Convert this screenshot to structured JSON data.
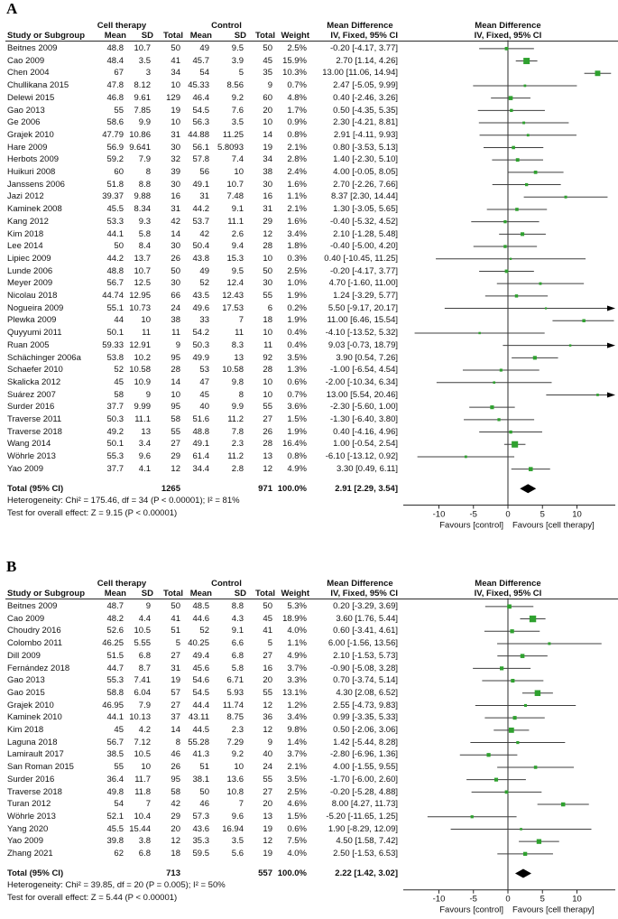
{
  "colors": {
    "marker": "#2FA12F",
    "ci_line": "#3F3F3F",
    "diamond": "#000000",
    "axis": "#2B2B2B",
    "text": "#111111"
  },
  "axis": {
    "ticks": [
      -10,
      -5,
      0,
      5,
      10
    ],
    "favours_left": "Favours [control]",
    "favours_right": "Favours [cell therapy]"
  },
  "headers": {
    "study": "Study or Subgroup",
    "group1": "Cell therapy",
    "group2": "Control",
    "effect": "Mean Difference",
    "method": "IV, Fixed, 95% CI",
    "cols": [
      "Mean",
      "SD",
      "Total",
      "Mean",
      "SD",
      "Total",
      "Weight"
    ]
  },
  "chart_data": [
    {
      "type": "forest",
      "label": "A",
      "studies": [
        {
          "s": "Beitnes 2009",
          "m1": "48.8",
          "sd1": "10.7",
          "n1": "50",
          "m2": "49",
          "sd2": "9.5",
          "n2": "50",
          "w": "2.5%",
          "md": -0.2,
          "lo": -4.17,
          "hi": 3.77
        },
        {
          "s": "Cao 2009",
          "m1": "48.4",
          "sd1": "3.5",
          "n1": "41",
          "m2": "45.7",
          "sd2": "3.9",
          "n2": "45",
          "w": "15.9%",
          "md": 2.7,
          "lo": 1.14,
          "hi": 4.26
        },
        {
          "s": "Chen 2004",
          "m1": "67",
          "sd1": "3",
          "n1": "34",
          "m2": "54",
          "sd2": "5",
          "n2": "35",
          "w": "10.3%",
          "md": 13,
          "lo": 11.06,
          "hi": 14.94
        },
        {
          "s": "Chullikana 2015",
          "m1": "47.8",
          "sd1": "8.12",
          "n1": "10",
          "m2": "45.33",
          "sd2": "8.56",
          "n2": "9",
          "w": "0.7%",
          "md": 2.47,
          "lo": -5.05,
          "hi": 9.99
        },
        {
          "s": "Delewi 2015",
          "m1": "46.8",
          "sd1": "9.61",
          "n1": "129",
          "m2": "46.4",
          "sd2": "9.2",
          "n2": "60",
          "w": "4.8%",
          "md": 0.4,
          "lo": -2.46,
          "hi": 3.26
        },
        {
          "s": "Gao 2013",
          "m1": "55",
          "sd1": "7.85",
          "n1": "19",
          "m2": "54.5",
          "sd2": "7.6",
          "n2": "20",
          "w": "1.7%",
          "md": 0.5,
          "lo": -4.35,
          "hi": 5.35
        },
        {
          "s": "Ge 2006",
          "m1": "58.6",
          "sd1": "9.9",
          "n1": "10",
          "m2": "56.3",
          "sd2": "3.5",
          "n2": "10",
          "w": "0.9%",
          "md": 2.3,
          "lo": -4.21,
          "hi": 8.81
        },
        {
          "s": "Grajek 2010",
          "m1": "47.79",
          "sd1": "10.86",
          "n1": "31",
          "m2": "44.88",
          "sd2": "11.25",
          "n2": "14",
          "w": "0.8%",
          "md": 2.91,
          "lo": -4.11,
          "hi": 9.93
        },
        {
          "s": "Hare 2009",
          "m1": "56.9",
          "sd1": "9.641",
          "n1": "30",
          "m2": "56.1",
          "sd2": "5.8093",
          "n2": "19",
          "w": "2.1%",
          "md": 0.8,
          "lo": -3.53,
          "hi": 5.13
        },
        {
          "s": "Herbots 2009",
          "m1": "59.2",
          "sd1": "7.9",
          "n1": "32",
          "m2": "57.8",
          "sd2": "7.4",
          "n2": "34",
          "w": "2.8%",
          "md": 1.4,
          "lo": -2.3,
          "hi": 5.1
        },
        {
          "s": "Huikuri 2008",
          "m1": "60",
          "sd1": "8",
          "n1": "39",
          "m2": "56",
          "sd2": "10",
          "n2": "38",
          "w": "2.4%",
          "md": 4,
          "lo": -0.05,
          "hi": 8.05
        },
        {
          "s": "Janssens 2006",
          "m1": "51.8",
          "sd1": "8.8",
          "n1": "30",
          "m2": "49.1",
          "sd2": "10.7",
          "n2": "30",
          "w": "1.6%",
          "md": 2.7,
          "lo": -2.26,
          "hi": 7.66
        },
        {
          "s": "Jazi 2012",
          "m1": "39.37",
          "sd1": "9.88",
          "n1": "16",
          "m2": "31",
          "sd2": "7.48",
          "n2": "16",
          "w": "1.1%",
          "md": 8.37,
          "lo": 2.3,
          "hi": 14.44
        },
        {
          "s": "Kaminek 2008",
          "m1": "45.5",
          "sd1": "8.34",
          "n1": "31",
          "m2": "44.2",
          "sd2": "9.1",
          "n2": "31",
          "w": "2.1%",
          "md": 1.3,
          "lo": -3.05,
          "hi": 5.65
        },
        {
          "s": "Kang 2012",
          "m1": "53.3",
          "sd1": "9.3",
          "n1": "42",
          "m2": "53.7",
          "sd2": "11.1",
          "n2": "29",
          "w": "1.6%",
          "md": -0.4,
          "lo": -5.32,
          "hi": 4.52
        },
        {
          "s": "Kim 2018",
          "m1": "44.1",
          "sd1": "5.8",
          "n1": "14",
          "m2": "42",
          "sd2": "2.6",
          "n2": "12",
          "w": "3.4%",
          "md": 2.1,
          "lo": -1.28,
          "hi": 5.48
        },
        {
          "s": "Lee 2014",
          "m1": "50",
          "sd1": "8.4",
          "n1": "30",
          "m2": "50.4",
          "sd2": "9.4",
          "n2": "28",
          "w": "1.8%",
          "md": -0.4,
          "lo": -5,
          "hi": 4.2
        },
        {
          "s": "Lipiec 2009",
          "m1": "44.2",
          "sd1": "13.7",
          "n1": "26",
          "m2": "43.8",
          "sd2": "15.3",
          "n2": "10",
          "w": "0.3%",
          "md": 0.4,
          "lo": -10.45,
          "hi": 11.25
        },
        {
          "s": "Lunde 2006",
          "m1": "48.8",
          "sd1": "10.7",
          "n1": "50",
          "m2": "49",
          "sd2": "9.5",
          "n2": "50",
          "w": "2.5%",
          "md": -0.2,
          "lo": -4.17,
          "hi": 3.77
        },
        {
          "s": "Meyer 2009",
          "m1": "56.7",
          "sd1": "12.5",
          "n1": "30",
          "m2": "52",
          "sd2": "12.4",
          "n2": "30",
          "w": "1.0%",
          "md": 4.7,
          "lo": -1.6,
          "hi": 11
        },
        {
          "s": "Nicolau 2018",
          "m1": "44.74",
          "sd1": "12.95",
          "n1": "66",
          "m2": "43.5",
          "sd2": "12.43",
          "n2": "55",
          "w": "1.9%",
          "md": 1.24,
          "lo": -3.29,
          "hi": 5.77
        },
        {
          "s": "Nogueira 2009",
          "m1": "55.1",
          "sd1": "10.73",
          "n1": "24",
          "m2": "49.6",
          "sd2": "17.53",
          "n2": "6",
          "w": "0.2%",
          "md": 5.5,
          "lo": -9.17,
          "hi": 20.17
        },
        {
          "s": "Plewka 2009",
          "m1": "44",
          "sd1": "10",
          "n1": "38",
          "m2": "33",
          "sd2": "7",
          "n2": "18",
          "w": "1.9%",
          "md": 11,
          "lo": 6.46,
          "hi": 15.54
        },
        {
          "s": "Quyyumi 2011",
          "m1": "50.1",
          "sd1": "11",
          "n1": "11",
          "m2": "54.2",
          "sd2": "11",
          "n2": "10",
          "w": "0.4%",
          "md": -4.1,
          "lo": -13.52,
          "hi": 5.32
        },
        {
          "s": "Ruan 2005",
          "m1": "59.33",
          "sd1": "12.91",
          "n1": "9",
          "m2": "50.3",
          "sd2": "8.3",
          "n2": "11",
          "w": "0.4%",
          "md": 9.03,
          "lo": -0.73,
          "hi": 18.79
        },
        {
          "s": "Schächinger 2006a",
          "m1": "53.8",
          "sd1": "10.2",
          "n1": "95",
          "m2": "49.9",
          "sd2": "13",
          "n2": "92",
          "w": "3.5%",
          "md": 3.9,
          "lo": 0.54,
          "hi": 7.26
        },
        {
          "s": "Schaefer 2010",
          "m1": "52",
          "sd1": "10.58",
          "n1": "28",
          "m2": "53",
          "sd2": "10.58",
          "n2": "28",
          "w": "1.3%",
          "md": -1,
          "lo": -6.54,
          "hi": 4.54
        },
        {
          "s": "Skalicka 2012",
          "m1": "45",
          "sd1": "10.9",
          "n1": "14",
          "m2": "47",
          "sd2": "9.8",
          "n2": "10",
          "w": "0.6%",
          "md": -2,
          "lo": -10.34,
          "hi": 6.34
        },
        {
          "s": "Suárez 2007",
          "m1": "58",
          "sd1": "9",
          "n1": "10",
          "m2": "45",
          "sd2": "8",
          "n2": "10",
          "w": "0.7%",
          "md": 13,
          "lo": 5.54,
          "hi": 20.46
        },
        {
          "s": "Surder 2016",
          "m1": "37.7",
          "sd1": "9.99",
          "n1": "95",
          "m2": "40",
          "sd2": "9.9",
          "n2": "55",
          "w": "3.6%",
          "md": -2.3,
          "lo": -5.6,
          "hi": 1
        },
        {
          "s": "Traverse 2011",
          "m1": "50.3",
          "sd1": "11.1",
          "n1": "58",
          "m2": "51.6",
          "sd2": "11.2",
          "n2": "27",
          "w": "1.5%",
          "md": -1.3,
          "lo": -6.4,
          "hi": 3.8
        },
        {
          "s": "Traverse 2018",
          "m1": "49.2",
          "sd1": "13",
          "n1": "55",
          "m2": "48.8",
          "sd2": "7.8",
          "n2": "26",
          "w": "1.9%",
          "md": 0.4,
          "lo": -4.16,
          "hi": 4.96
        },
        {
          "s": "Wang 2014",
          "m1": "50.1",
          "sd1": "3.4",
          "n1": "27",
          "m2": "49.1",
          "sd2": "2.3",
          "n2": "28",
          "w": "16.4%",
          "md": 1,
          "lo": -0.54,
          "hi": 2.54
        },
        {
          "s": "Wöhrle 2013",
          "m1": "55.3",
          "sd1": "9.6",
          "n1": "29",
          "m2": "61.4",
          "sd2": "11.2",
          "n2": "13",
          "w": "0.8%",
          "md": -6.1,
          "lo": -13.12,
          "hi": 0.92
        },
        {
          "s": "Yao 2009",
          "m1": "37.7",
          "sd1": "4.1",
          "n1": "12",
          "m2": "34.4",
          "sd2": "2.8",
          "n2": "12",
          "w": "4.9%",
          "md": 3.3,
          "lo": 0.49,
          "hi": 6.11
        }
      ],
      "total": {
        "label": "Total (95% CI)",
        "n1": "1265",
        "n2": "971",
        "w": "100.0%",
        "md": 2.91,
        "lo": 2.29,
        "hi": 3.54
      },
      "heterogeneity": "Heterogeneity: Chi² = 175.46, df = 34 (P < 0.00001); I² = 81%",
      "overall_effect": "Test for overall effect: Z = 9.15 (P < 0.00001)"
    },
    {
      "type": "forest",
      "label": "B",
      "studies": [
        {
          "s": "Beitnes 2009",
          "m1": "48.7",
          "sd1": "9",
          "n1": "50",
          "m2": "48.5",
          "sd2": "8.8",
          "n2": "50",
          "w": "5.3%",
          "md": 0.2,
          "lo": -3.29,
          "hi": 3.69
        },
        {
          "s": "Cao 2009",
          "m1": "48.2",
          "sd1": "4.4",
          "n1": "41",
          "m2": "44.6",
          "sd2": "4.3",
          "n2": "45",
          "w": "18.9%",
          "md": 3.6,
          "lo": 1.76,
          "hi": 5.44
        },
        {
          "s": "Choudry 2016",
          "m1": "52.6",
          "sd1": "10.5",
          "n1": "51",
          "m2": "52",
          "sd2": "9.1",
          "n2": "41",
          "w": "4.0%",
          "md": 0.6,
          "lo": -3.41,
          "hi": 4.61
        },
        {
          "s": "Colombo 2011",
          "m1": "46.25",
          "sd1": "5.55",
          "n1": "5",
          "m2": "40.25",
          "sd2": "6.6",
          "n2": "5",
          "w": "1.1%",
          "md": 6,
          "lo": -1.56,
          "hi": 13.56
        },
        {
          "s": "Dill 2009",
          "m1": "51.5",
          "sd1": "6.8",
          "n1": "27",
          "m2": "49.4",
          "sd2": "6.8",
          "n2": "27",
          "w": "4.9%",
          "md": 2.1,
          "lo": -1.53,
          "hi": 5.73
        },
        {
          "s": "Fernández 2018",
          "m1": "44.7",
          "sd1": "8.7",
          "n1": "31",
          "m2": "45.6",
          "sd2": "5.8",
          "n2": "16",
          "w": "3.7%",
          "md": -0.9,
          "lo": -5.08,
          "hi": 3.28
        },
        {
          "s": "Gao 2013",
          "m1": "55.3",
          "sd1": "7.41",
          "n1": "19",
          "m2": "54.6",
          "sd2": "6.71",
          "n2": "20",
          "w": "3.3%",
          "md": 0.7,
          "lo": -3.74,
          "hi": 5.14
        },
        {
          "s": "Gao 2015",
          "m1": "58.8",
          "sd1": "6.04",
          "n1": "57",
          "m2": "54.5",
          "sd2": "5.93",
          "n2": "55",
          "w": "13.1%",
          "md": 4.3,
          "lo": 2.08,
          "hi": 6.52
        },
        {
          "s": "Grajek 2010",
          "m1": "46.95",
          "sd1": "7.9",
          "n1": "27",
          "m2": "44.4",
          "sd2": "11.74",
          "n2": "12",
          "w": "1.2%",
          "md": 2.55,
          "lo": -4.73,
          "hi": 9.83
        },
        {
          "s": "Kaminek 2010",
          "m1": "44.1",
          "sd1": "10.13",
          "n1": "37",
          "m2": "43.11",
          "sd2": "8.75",
          "n2": "36",
          "w": "3.4%",
          "md": 0.99,
          "lo": -3.35,
          "hi": 5.33
        },
        {
          "s": "Kim 2018",
          "m1": "45",
          "sd1": "4.2",
          "n1": "14",
          "m2": "44.5",
          "sd2": "2.3",
          "n2": "12",
          "w": "9.8%",
          "md": 0.5,
          "lo": -2.06,
          "hi": 3.06
        },
        {
          "s": "Laguna 2018",
          "m1": "56.7",
          "sd1": "7.12",
          "n1": "8",
          "m2": "55.28",
          "sd2": "7.29",
          "n2": "9",
          "w": "1.4%",
          "md": 1.42,
          "lo": -5.44,
          "hi": 8.28
        },
        {
          "s": "Lamirault 2017",
          "m1": "38.5",
          "sd1": "10.5",
          "n1": "46",
          "m2": "41.3",
          "sd2": "9.2",
          "n2": "40",
          "w": "3.7%",
          "md": -2.8,
          "lo": -6.96,
          "hi": 1.36
        },
        {
          "s": "San Roman 2015",
          "m1": "55",
          "sd1": "10",
          "n1": "26",
          "m2": "51",
          "sd2": "10",
          "n2": "24",
          "w": "2.1%",
          "md": 4,
          "lo": -1.55,
          "hi": 9.55
        },
        {
          "s": "Surder 2016",
          "m1": "36.4",
          "sd1": "11.7",
          "n1": "95",
          "m2": "38.1",
          "sd2": "13.6",
          "n2": "55",
          "w": "3.5%",
          "md": -1.7,
          "lo": -6,
          "hi": 2.6
        },
        {
          "s": "Traverse 2018",
          "m1": "49.8",
          "sd1": "11.8",
          "n1": "58",
          "m2": "50",
          "sd2": "10.8",
          "n2": "27",
          "w": "2.5%",
          "md": -0.2,
          "lo": -5.28,
          "hi": 4.88
        },
        {
          "s": "Turan 2012",
          "m1": "54",
          "sd1": "7",
          "n1": "42",
          "m2": "46",
          "sd2": "7",
          "n2": "20",
          "w": "4.6%",
          "md": 8,
          "lo": 4.27,
          "hi": 11.73
        },
        {
          "s": "Wöhrle 2013",
          "m1": "52.1",
          "sd1": "10.4",
          "n1": "29",
          "m2": "57.3",
          "sd2": "9.6",
          "n2": "13",
          "w": "1.5%",
          "md": -5.2,
          "lo": -11.65,
          "hi": 1.25
        },
        {
          "s": "Yang 2020",
          "m1": "45.5",
          "sd1": "15.44",
          "n1": "20",
          "m2": "43.6",
          "sd2": "16.94",
          "n2": "19",
          "w": "0.6%",
          "md": 1.9,
          "lo": -8.29,
          "hi": 12.09
        },
        {
          "s": "Yao 2009",
          "m1": "39.8",
          "sd1": "3.8",
          "n1": "12",
          "m2": "35.3",
          "sd2": "3.5",
          "n2": "12",
          "w": "7.5%",
          "md": 4.5,
          "lo": 1.58,
          "hi": 7.42
        },
        {
          "s": "Zhang 2021",
          "m1": "62",
          "sd1": "6.8",
          "n1": "18",
          "m2": "59.5",
          "sd2": "5.6",
          "n2": "19",
          "w": "4.0%",
          "md": 2.5,
          "lo": -1.53,
          "hi": 6.53
        }
      ],
      "total": {
        "label": "Total (95% CI)",
        "n1": "713",
        "n2": "557",
        "w": "100.0%",
        "md": 2.22,
        "lo": 1.42,
        "hi": 3.02
      },
      "heterogeneity": "Heterogeneity: Chi² = 39.85, df = 20 (P = 0.005); I² = 50%",
      "overall_effect": "Test for overall effect: Z = 5.44 (P < 0.00001)"
    }
  ]
}
